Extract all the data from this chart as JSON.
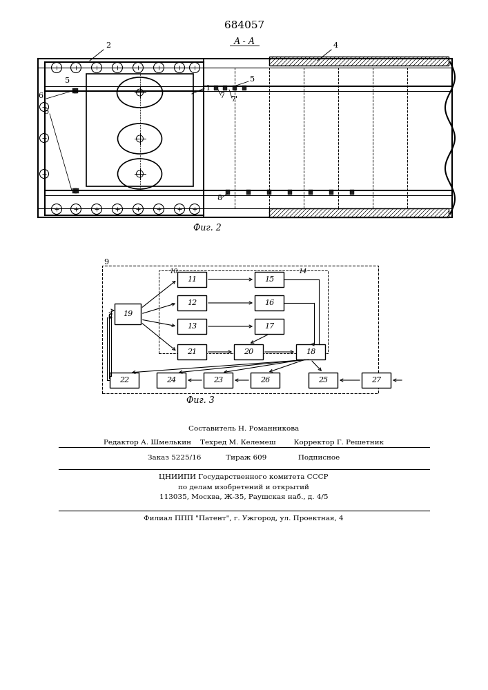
{
  "patent_number": "684057",
  "fig2_label": "Фиг. 2",
  "fig3_label": "Фиг. 3",
  "section_label": "А - А",
  "bg_color": "#ffffff",
  "line_color": "#000000"
}
